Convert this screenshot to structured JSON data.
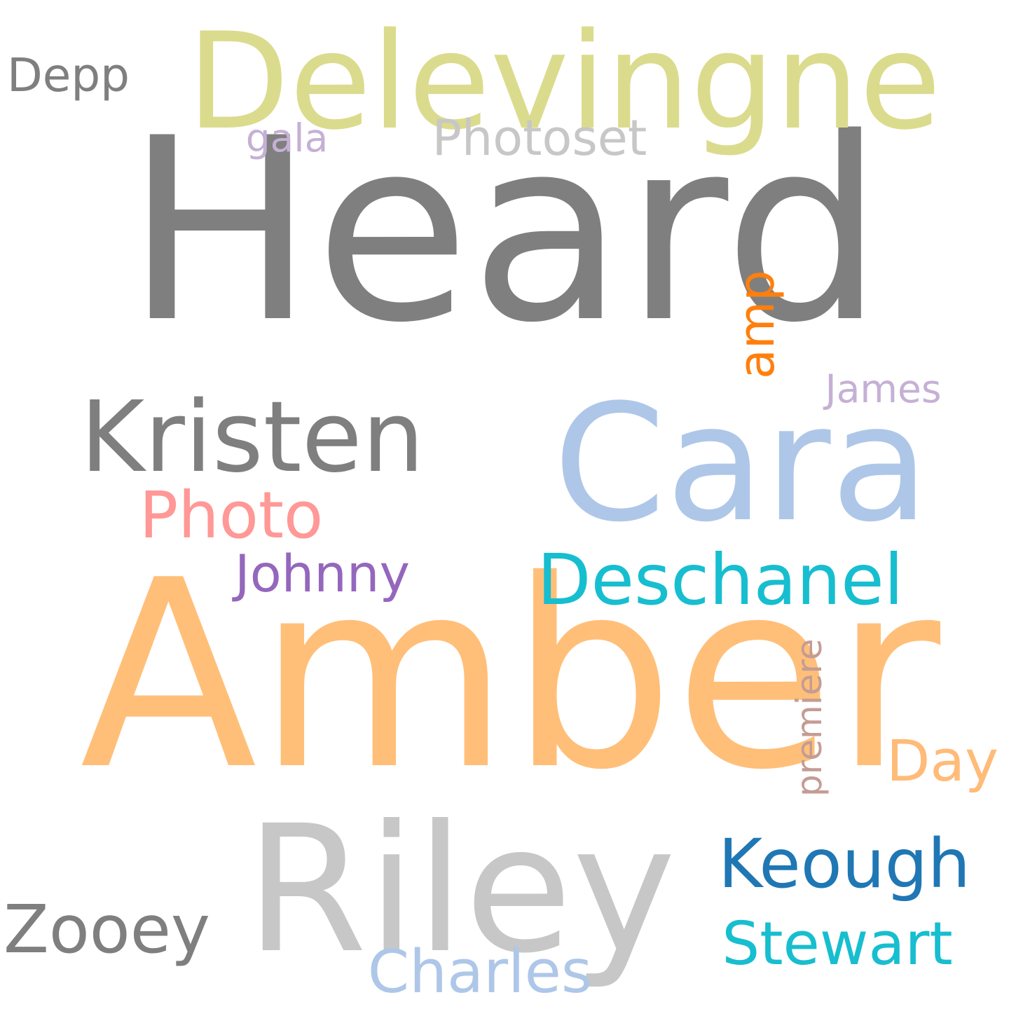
{
  "words": [
    {
      "id": "heard",
      "text": "Heard",
      "color": "#7f7f7f"
    },
    {
      "id": "amber",
      "text": "Amber",
      "color": "#ffbf79"
    },
    {
      "id": "cara",
      "text": "Cara",
      "color": "#aec7e8"
    },
    {
      "id": "delevingne",
      "text": "Delevingne",
      "color": "#dbdb8d"
    },
    {
      "id": "riley",
      "text": "Riley",
      "color": "#c7c7c7"
    },
    {
      "id": "kristen",
      "text": "Kristen",
      "color": "#7f7f7f"
    },
    {
      "id": "deschanel",
      "text": "Deschanel",
      "color": "#17becf"
    },
    {
      "id": "photo",
      "text": "Photo",
      "color": "#ff9896"
    },
    {
      "id": "keough",
      "text": "Keough",
      "color": "#1f77b4"
    },
    {
      "id": "stewart",
      "text": "Stewart",
      "color": "#17becf"
    },
    {
      "id": "zooey",
      "text": "Zooey",
      "color": "#7f7f7f"
    },
    {
      "id": "photoset",
      "text": "Photoset",
      "color": "#c7c7c7"
    },
    {
      "id": "charles",
      "text": "Charles",
      "color": "#aec7e8"
    },
    {
      "id": "james",
      "text": "James",
      "color": "#c5b0d5"
    },
    {
      "id": "johnny",
      "text": "Johnny",
      "color": "#9467bd"
    },
    {
      "id": "day",
      "text": "Day",
      "color": "#ffbb78"
    },
    {
      "id": "amp",
      "text": "amp",
      "color": "#ff7f0e"
    },
    {
      "id": "depp",
      "text": "Depp",
      "color": "#7f7f7f"
    },
    {
      "id": "premiere",
      "text": "premiere",
      "color": "#c49c94"
    },
    {
      "id": "gala",
      "text": "gala",
      "color": "#c5b0d5"
    }
  ]
}
